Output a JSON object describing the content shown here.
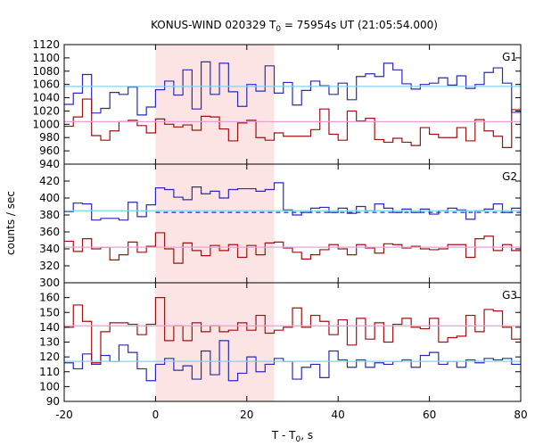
{
  "chart_data": {
    "type": "line",
    "title": "KONUS-WIND 020329 T",
    "title_sub": "0",
    "title_rest": " = 75954s UT (21:05:54.000)",
    "xlabel": "T - T",
    "xlabel_sub": "0",
    "xlabel_rest": ", s",
    "ylabel": "counts / sec",
    "xlim": [
      -20,
      80
    ],
    "x_ticks": [
      -20,
      0,
      20,
      40,
      60,
      80
    ],
    "highlight": {
      "from": 0,
      "to": 26,
      "color": "#fde4e4"
    },
    "colors": {
      "blue": "#2a2ab8",
      "red": "#a01010",
      "cyan": "#7fd4ec",
      "pink": "#e9a0d8"
    },
    "panels": [
      {
        "name": "G1",
        "ylim": [
          940,
          1120
        ],
        "y_ticks": [
          940,
          960,
          980,
          1000,
          1020,
          1040,
          1060,
          1080,
          1100,
          1120
        ],
        "edges": [
          -20,
          -18,
          -16,
          -14,
          -12,
          -10,
          -8,
          -6,
          -4,
          -2,
          0,
          2,
          4,
          6,
          8,
          10,
          12,
          14,
          16,
          18,
          20,
          22,
          24,
          26,
          28,
          30,
          32,
          34,
          36,
          38,
          40,
          42,
          44,
          46,
          48,
          50,
          52,
          54,
          56,
          58,
          60,
          62,
          64,
          66,
          68,
          70,
          72,
          74,
          76,
          78,
          80
        ],
        "series": [
          {
            "color": "blue",
            "values": [
              1030,
              1047,
              1075,
              1017,
              1024,
              1048,
              1045,
              1056,
              1014,
              1026,
              1052,
              1065,
              1044,
              1082,
              1023,
              1094,
              1045,
              1092,
              1049,
              1027,
              1060,
              1050,
              1088,
              1047,
              1063,
              1029,
              1051,
              1065,
              1058,
              1045,
              1062,
              1037,
              1072,
              1076,
              1072,
              1092,
              1082,
              1061,
              1053,
              1060,
              1062,
              1070,
              1059,
              1073,
              1054,
              1060,
              1078,
              1085,
              1062,
              1018
            ]
          },
          {
            "color": "red",
            "values": [
              997,
              1011,
              1038,
              983,
              976,
              990,
              1004,
              1006,
              998,
              987,
              1008,
              1000,
              996,
              999,
              991,
              1012,
              1011,
              993,
              975,
              1002,
              1006,
              980,
              976,
              987,
              982,
              982,
              982,
              992,
              1023,
              985,
              976,
              1020,
              1005,
              1009,
              977,
              973,
              979,
              973,
              968,
              995,
              985,
              980,
              980,
              995,
              975,
              1007,
              990,
              982,
              965,
              1022
            ]
          }
        ],
        "ref_lines": [
          {
            "color": "cyan",
            "y": 1057
          },
          {
            "color": "pink",
            "y": 1004
          }
        ]
      },
      {
        "name": "G2",
        "ylim": [
          300,
          440
        ],
        "y_ticks": [
          300,
          320,
          340,
          360,
          380,
          400,
          420
        ],
        "edges": [
          -20,
          -18,
          -16,
          -14,
          -12,
          -10,
          -8,
          -6,
          -4,
          -2,
          0,
          2,
          4,
          6,
          8,
          10,
          12,
          14,
          16,
          18,
          20,
          22,
          24,
          26,
          28,
          30,
          32,
          34,
          36,
          38,
          40,
          42,
          44,
          46,
          48,
          50,
          52,
          54,
          56,
          58,
          60,
          62,
          64,
          66,
          68,
          70,
          72,
          74,
          76,
          78,
          80
        ],
        "series": [
          {
            "color": "blue",
            "values": [
              384,
              394,
              393,
              374,
              376,
              376,
              374,
              395,
              378,
              392,
              412,
              410,
              401,
              398,
              413,
              405,
              408,
              400,
              410,
              411,
              411,
              408,
              410,
              418,
              386,
              380,
              383,
              388,
              389,
              383,
              388,
              382,
              390,
              385,
              393,
              388,
              383,
              387,
              383,
              387,
              381,
              385,
              388,
              386,
              375,
              385,
              387,
              393,
              383,
              388
            ]
          },
          {
            "color": "red",
            "values": [
              349,
              337,
              352,
              340,
              342,
              327,
              333,
              348,
              336,
              343,
              359,
              340,
              323,
              347,
              338,
              332,
              344,
              338,
              345,
              330,
              344,
              333,
              347,
              348,
              341,
              336,
              328,
              333,
              339,
              345,
              340,
              333,
              345,
              341,
              335,
              346,
              345,
              341,
              343,
              340,
              339,
              340,
              345,
              345,
              330,
              352,
              355,
              338,
              345,
              338
            ]
          }
        ],
        "ref_lines": [
          {
            "color": "cyan",
            "y": 385
          },
          {
            "color": "pink",
            "y": 342
          }
        ],
        "dashed_line": {
          "color": "blue",
          "y": 383,
          "from": 0,
          "to": 80
        }
      },
      {
        "name": "G3",
        "ylim": [
          90,
          170
        ],
        "y_ticks": [
          90,
          100,
          110,
          120,
          130,
          140,
          150,
          160
        ],
        "edges": [
          -20,
          -18,
          -16,
          -14,
          -12,
          -10,
          -8,
          -6,
          -4,
          -2,
          0,
          2,
          4,
          6,
          8,
          10,
          12,
          14,
          16,
          18,
          20,
          22,
          24,
          26,
          28,
          30,
          32,
          34,
          36,
          38,
          40,
          42,
          44,
          46,
          48,
          50,
          52,
          54,
          56,
          58,
          60,
          62,
          64,
          66,
          68,
          70,
          72,
          74,
          76,
          78,
          80
        ],
        "series": [
          {
            "color": "blue",
            "values": [
              116,
              112,
              122,
              115,
              121,
              117,
              128,
              123,
              112,
              104,
              115,
              119,
              111,
              114,
              105,
              124,
              108,
              131,
              104,
              109,
              120,
              110,
              115,
              119,
              117,
              105,
              113,
              115,
              106,
              124,
              118,
              113,
              118,
              113,
              116,
              115,
              117,
              118,
              113,
              121,
              123,
              115,
              117,
              113,
              118,
              116,
              119,
              118,
              119,
              115
            ]
          },
          {
            "color": "red",
            "values": [
              140,
              155,
              144,
              116,
              137,
              143,
              143,
              142,
              135,
              142,
              160,
              131,
              141,
              131,
              143,
              137,
              141,
              137,
              138,
              143,
              138,
              148,
              136,
              138,
              140,
              153,
              140,
              148,
              144,
              135,
              145,
              128,
              146,
              132,
              143,
              130,
              142,
              146,
              140,
              139,
              146,
              130,
              133,
              134,
              148,
              137,
              152,
              151,
              140,
              132
            ]
          }
        ],
        "ref_lines": [
          {
            "color": "cyan",
            "y": 117
          },
          {
            "color": "pink",
            "y": 141
          }
        ]
      }
    ]
  }
}
